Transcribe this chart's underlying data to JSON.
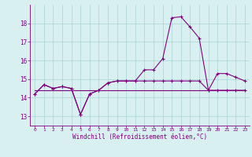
{
  "hours": [
    0,
    1,
    2,
    3,
    4,
    5,
    6,
    7,
    8,
    9,
    10,
    11,
    12,
    13,
    14,
    15,
    16,
    17,
    18,
    19,
    20,
    21,
    22,
    23
  ],
  "temp": [
    14.2,
    14.7,
    14.5,
    14.6,
    14.5,
    13.1,
    14.2,
    14.4,
    14.8,
    14.9,
    14.9,
    14.9,
    15.5,
    15.5,
    16.1,
    18.3,
    18.35,
    17.8,
    17.2,
    14.4,
    15.3,
    15.3,
    15.1,
    14.9
  ],
  "windchill": [
    14.2,
    14.7,
    14.5,
    14.6,
    14.5,
    13.1,
    14.2,
    14.4,
    14.8,
    14.9,
    14.9,
    14.9,
    14.9,
    14.9,
    14.9,
    14.9,
    14.9,
    14.9,
    14.9,
    14.4,
    14.4,
    14.4,
    14.4,
    14.4
  ],
  "flat_line": [
    14.4,
    14.4,
    14.4,
    14.4,
    14.4,
    14.4,
    14.4,
    14.4,
    14.4,
    14.4,
    14.4,
    14.4,
    14.4,
    14.4,
    14.4,
    14.4,
    14.4,
    14.4,
    14.4,
    14.4,
    14.4,
    14.4,
    14.4,
    14.4
  ],
  "line_color": "#800080",
  "bg_color": "#d8f0f0",
  "grid_color": "#aad4d4",
  "xlabel": "Windchill (Refroidissement éolien,°C)",
  "ylim": [
    12.5,
    19.0
  ],
  "xlim": [
    -0.5,
    23.5
  ],
  "yticks": [
    13,
    14,
    15,
    16,
    17,
    18
  ],
  "xticks": [
    0,
    1,
    2,
    3,
    4,
    5,
    6,
    7,
    8,
    9,
    10,
    11,
    12,
    13,
    14,
    15,
    16,
    17,
    18,
    19,
    20,
    21,
    22,
    23
  ]
}
